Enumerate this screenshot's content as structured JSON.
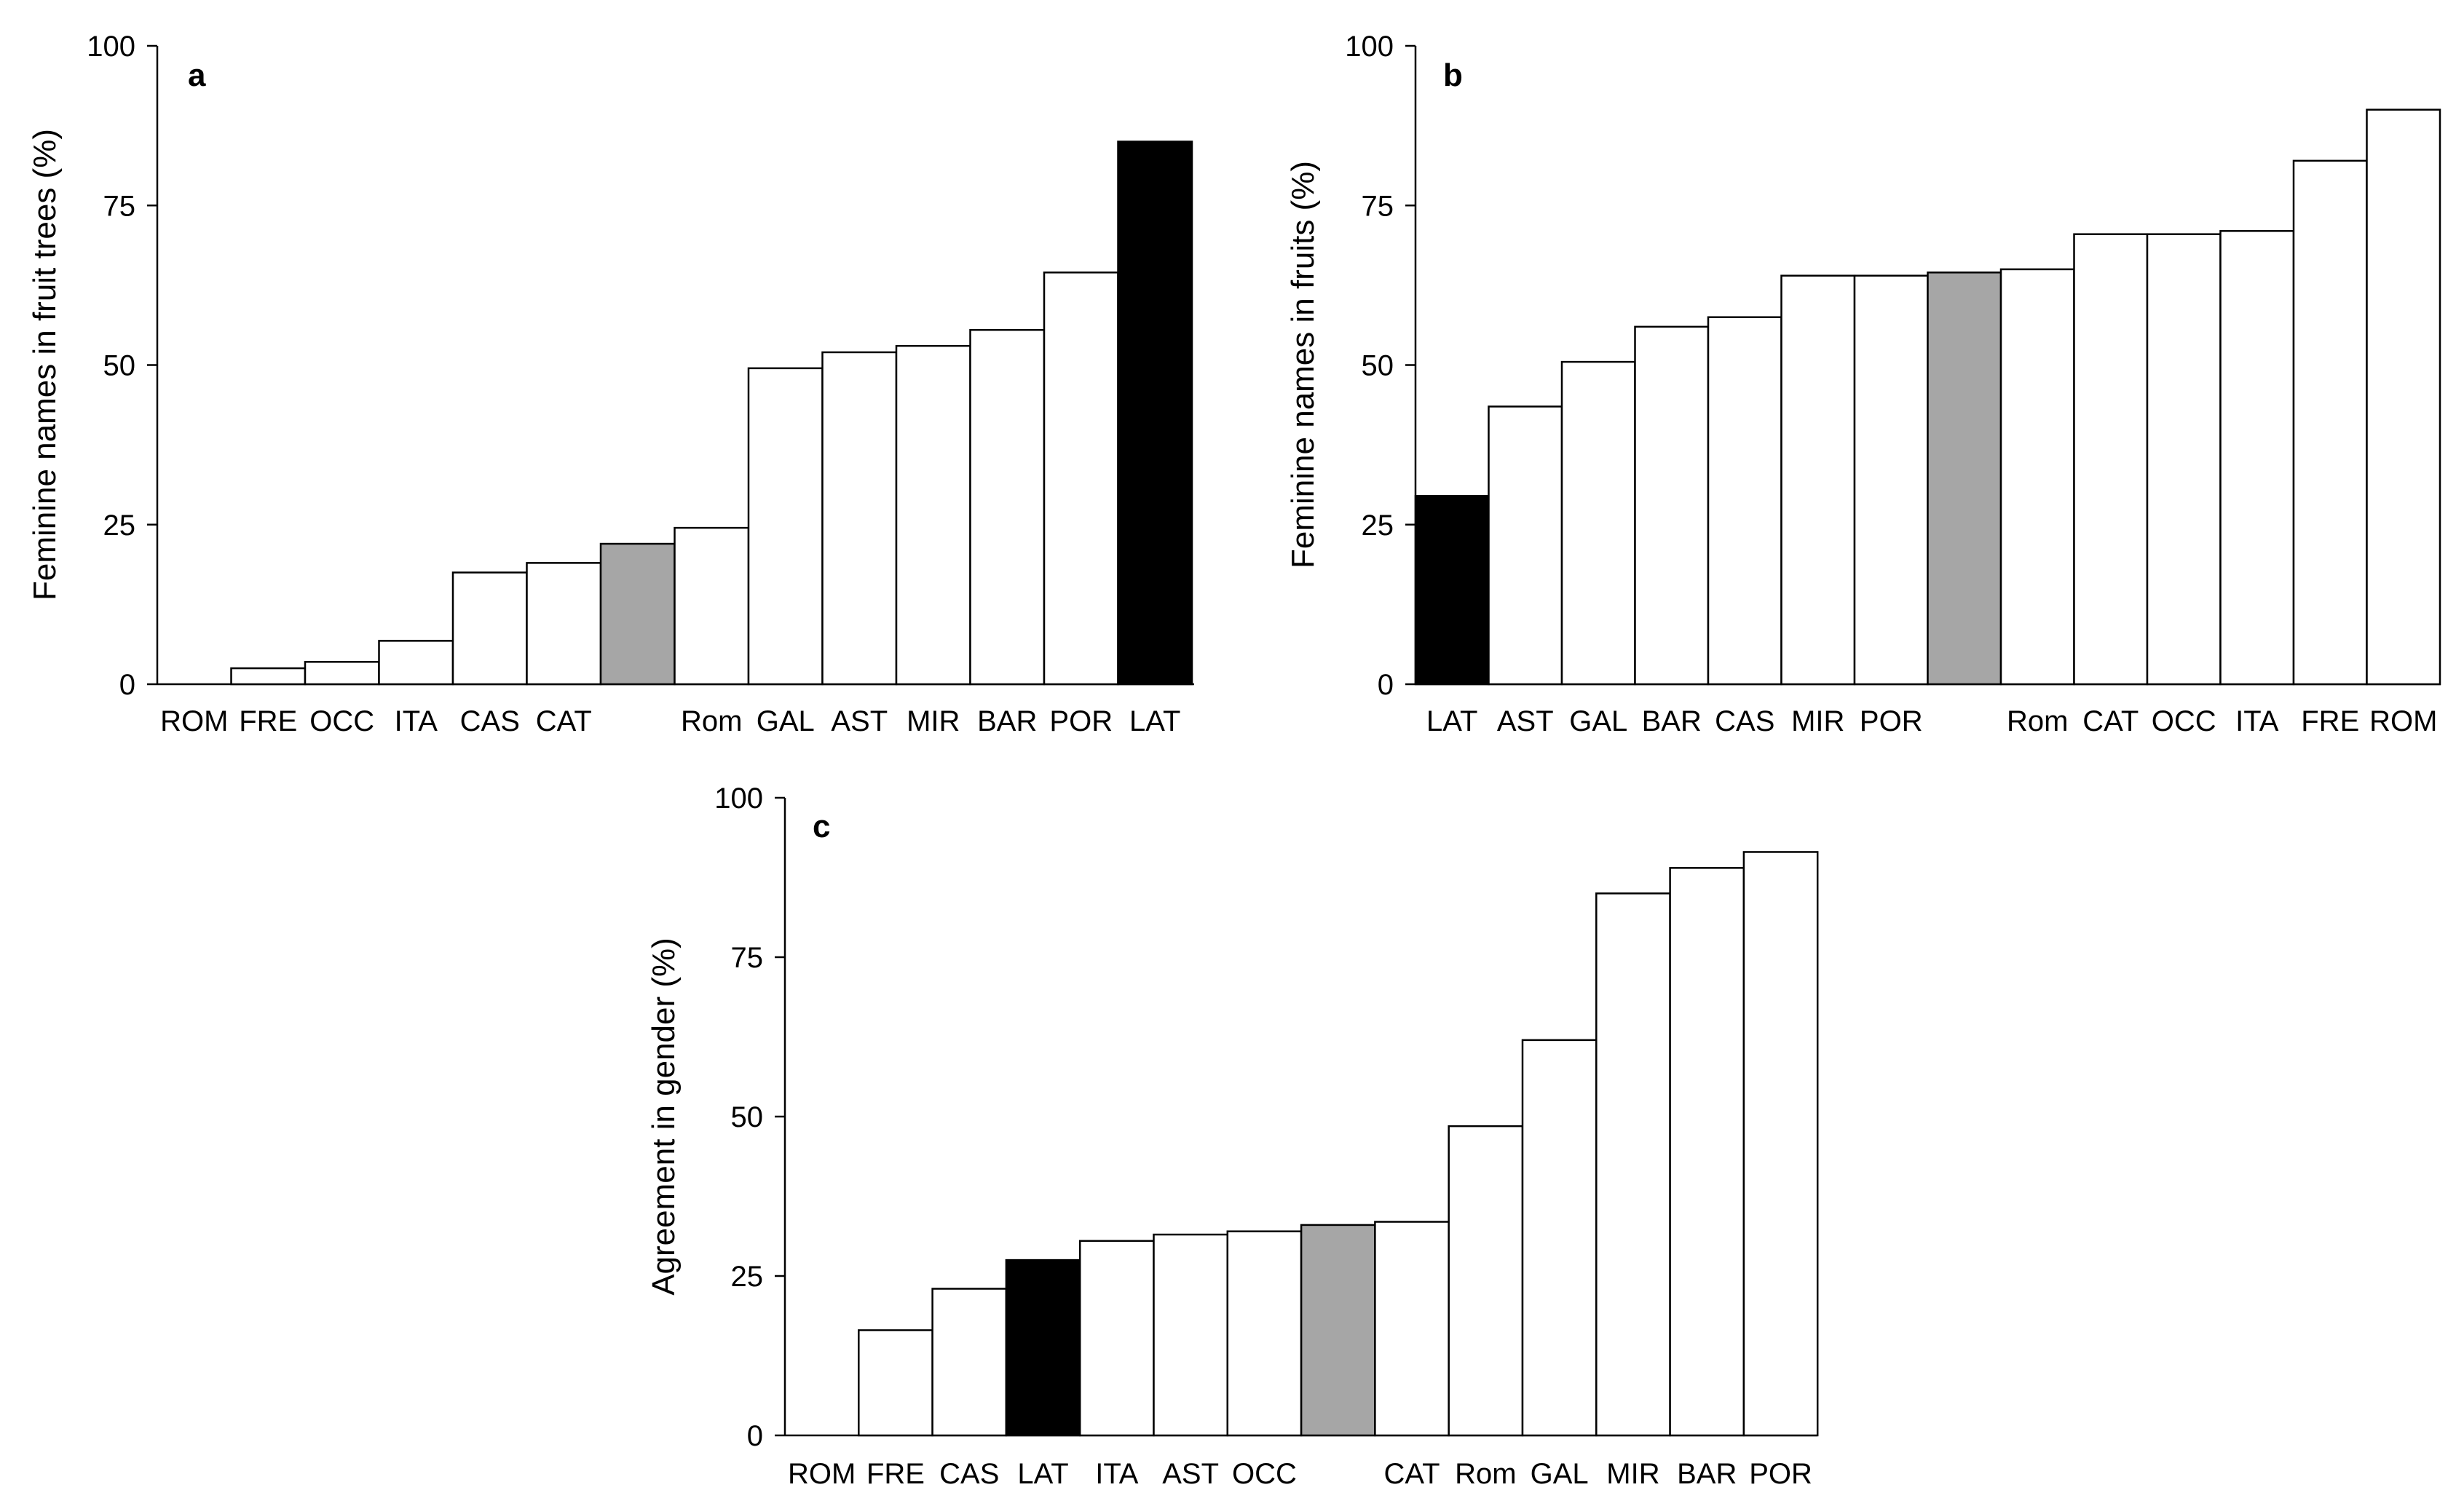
{
  "colors": {
    "bar_default": "#ffffff",
    "bar_highlight_black": "#000000",
    "bar_highlight_grey": "#a6a6a6",
    "stroke": "#000000"
  },
  "chart_data": [
    {
      "panel": "a",
      "type": "bar",
      "ylabel": "Feminine names in fruit trees (%)",
      "ylim": [
        0,
        100
      ],
      "yticks": [
        "0",
        "25",
        "50",
        "75",
        "100"
      ],
      "categories": [
        "ROM",
        "FRE",
        "OCC",
        "ITA",
        "CAS",
        "CAT",
        "",
        "Rom",
        "GAL",
        "AST",
        "MIR",
        "BAR",
        "POR",
        "LAT"
      ],
      "values": [
        0,
        2.5,
        3.5,
        6.8,
        17.5,
        19,
        22,
        24.5,
        49.5,
        52,
        53,
        55.5,
        64.5,
        85
      ],
      "fills": [
        "white",
        "white",
        "white",
        "white",
        "white",
        "white",
        "grey",
        "white",
        "white",
        "white",
        "white",
        "white",
        "white",
        "black"
      ]
    },
    {
      "panel": "b",
      "type": "bar",
      "ylabel": "Feminine names in fruits (%)",
      "ylim": [
        0,
        100
      ],
      "yticks": [
        "0",
        "25",
        "50",
        "75",
        "100"
      ],
      "categories": [
        "LAT",
        "AST",
        "GAL",
        "BAR",
        "CAS",
        "MIR",
        "POR",
        "",
        "Rom",
        "CAT",
        "OCC",
        "ITA",
        "FRE",
        "ROM"
      ],
      "values": [
        29.5,
        43.5,
        50.5,
        56,
        57.5,
        64,
        64,
        64.5,
        65,
        70.5,
        70.5,
        71,
        82,
        90
      ],
      "fills": [
        "black",
        "white",
        "white",
        "white",
        "white",
        "white",
        "white",
        "grey",
        "white",
        "white",
        "white",
        "white",
        "white",
        "white"
      ]
    },
    {
      "panel": "c",
      "type": "bar",
      "ylabel": "Agreement in gender (%)",
      "ylim": [
        0,
        100
      ],
      "yticks": [
        "0",
        "25",
        "50",
        "75",
        "100"
      ],
      "categories": [
        "ROM",
        "FRE",
        "CAS",
        "LAT",
        "ITA",
        "AST",
        "OCC",
        "",
        "CAT",
        "Rom",
        "GAL",
        "MIR",
        "BAR",
        "POR"
      ],
      "values": [
        0,
        16.5,
        23,
        27.5,
        30.5,
        31.5,
        32,
        33,
        33.5,
        48.5,
        62,
        85,
        89,
        91.5
      ],
      "fills": [
        "white",
        "white",
        "white",
        "black",
        "white",
        "white",
        "white",
        "grey",
        "white",
        "white",
        "white",
        "white",
        "white",
        "white"
      ]
    }
  ]
}
